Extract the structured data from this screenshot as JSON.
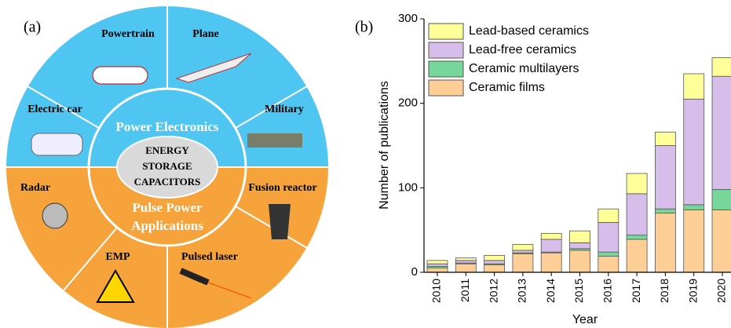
{
  "panel_a": {
    "label": "(a)",
    "inner_top": "Power Electronics",
    "inner_bottom": [
      "Pulse Power",
      "Applications"
    ],
    "center": [
      "ENERGY",
      "STORAGE",
      "CAPACITORS"
    ],
    "sectors": [
      "Powertrain",
      "Plane",
      "Electric car",
      "Military",
      "Radar",
      "Fusion reactor",
      "EMP",
      "Pulsed laser"
    ]
  },
  "chart_data": {
    "type": "stacked_bar",
    "panel_label": "(b)",
    "x_label": "Year",
    "y_label": "Number of publications",
    "categories": [
      "2010",
      "2011",
      "2012",
      "2013",
      "2014",
      "2015",
      "2016",
      "2017",
      "2018",
      "2019",
      "2020"
    ],
    "series": [
      {
        "name": "Lead-based ceramics",
        "color": "#ffff99",
        "values": [
          4,
          3,
          6,
          7,
          7,
          14,
          16,
          24,
          16,
          30,
          22
        ]
      },
      {
        "name": "Lead-free ceramics",
        "color": "#d7bde9",
        "values": [
          3,
          3,
          4,
          3,
          15,
          7,
          35,
          49,
          75,
          125,
          134
        ]
      },
      {
        "name": "Ceramic multilayers",
        "color": "#77d69a",
        "values": [
          2,
          1,
          1,
          1,
          1,
          2,
          5,
          5,
          5,
          6,
          24
        ]
      },
      {
        "name": "Ceramic films",
        "color": "#fdcf97",
        "values": [
          5,
          10,
          9,
          22,
          23,
          26,
          19,
          39,
          70,
          74,
          74
        ]
      }
    ],
    "ylim": [
      0,
      300
    ],
    "yticks": [
      0,
      100,
      200,
      300
    ],
    "legend": "upper left"
  }
}
